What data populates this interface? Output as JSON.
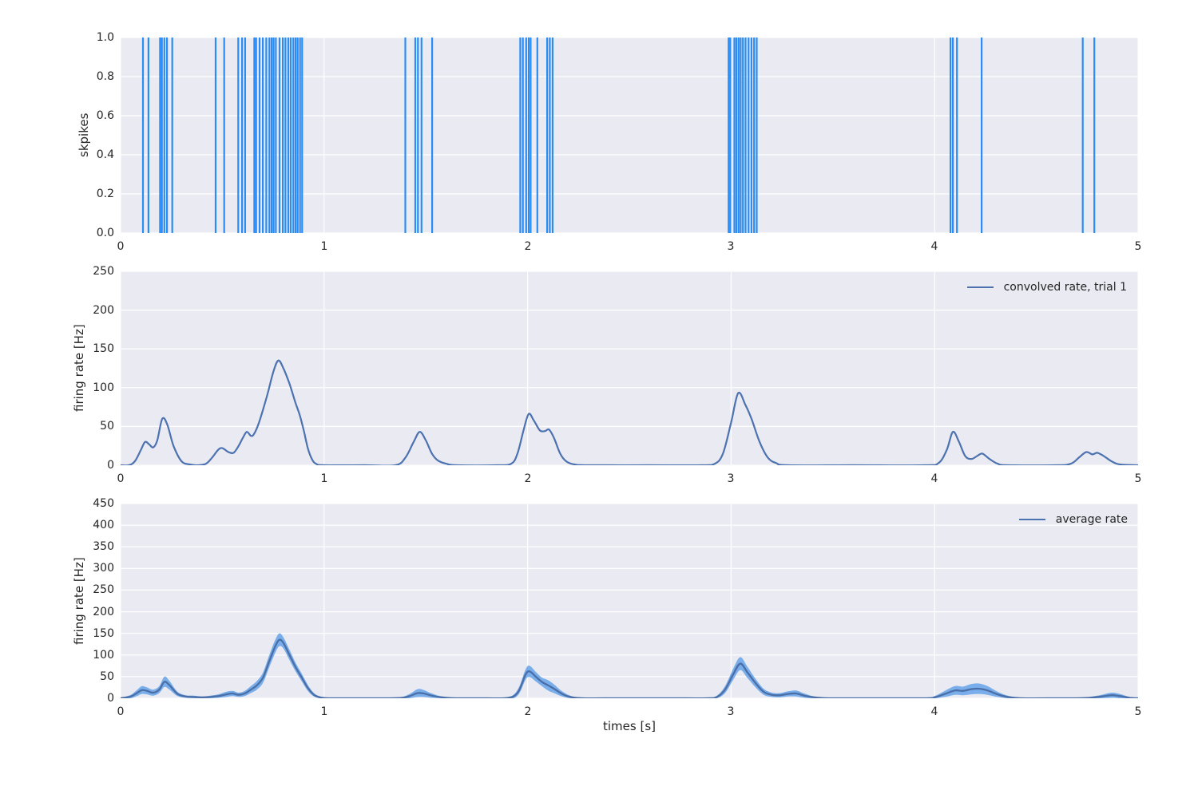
{
  "colors": {
    "figure_bg": "#ffffff",
    "axes_bg": "#eaeaf2",
    "grid": "#ffffff",
    "text": "#262626",
    "spike": "#2b8cf3",
    "line": "#4c72b0",
    "mean_line": "#4a6fa8",
    "band": "#79aeea"
  },
  "chart_data": [
    {
      "name": "spike-raster",
      "type": "event-raster",
      "ylabel": "skpikes",
      "xlim": [
        0,
        5
      ],
      "ylim": [
        0,
        1
      ],
      "xticks": [
        {
          "v": 0,
          "label": "0"
        },
        {
          "v": 1,
          "label": "1"
        },
        {
          "v": 2,
          "label": "2"
        },
        {
          "v": 3,
          "label": "3"
        },
        {
          "v": 4,
          "label": "4"
        },
        {
          "v": 5,
          "label": "5"
        }
      ],
      "yticks": [
        {
          "v": 0,
          "label": "0.0"
        },
        {
          "v": 0.2,
          "label": "0.2"
        },
        {
          "v": 0.4,
          "label": "0.4"
        },
        {
          "v": 0.6,
          "label": "0.6"
        },
        {
          "v": 0.8,
          "label": "0.8"
        },
        {
          "v": 1,
          "label": "1.0"
        }
      ],
      "spike_times": [
        0.11,
        0.137,
        0.194,
        0.203,
        0.215,
        0.228,
        0.254,
        0.467,
        0.509,
        0.578,
        0.597,
        0.612,
        0.657,
        0.666,
        0.683,
        0.699,
        0.716,
        0.731,
        0.742,
        0.752,
        0.763,
        0.781,
        0.797,
        0.81,
        0.824,
        0.836,
        0.849,
        0.86,
        0.87,
        0.882,
        0.892,
        1.399,
        1.448,
        1.461,
        1.479,
        1.531,
        1.964,
        1.977,
        1.993,
        2.005,
        2.015,
        2.048,
        2.096,
        2.109,
        2.123,
        2.988,
        2.996,
        3.016,
        3.026,
        3.037,
        3.047,
        3.058,
        3.071,
        3.086,
        3.1,
        3.113,
        3.126,
        4.078,
        4.09,
        4.11,
        4.231,
        4.728,
        4.785
      ]
    },
    {
      "name": "convolved-rate",
      "type": "line",
      "ylabel": "firing rate [Hz]",
      "legend": "convolved rate, trial 1",
      "legend_position": "upper right",
      "xlim": [
        0,
        5
      ],
      "ylim": [
        0,
        250
      ],
      "xticks": [
        {
          "v": 0,
          "label": "0"
        },
        {
          "v": 1,
          "label": "1"
        },
        {
          "v": 2,
          "label": "2"
        },
        {
          "v": 3,
          "label": "3"
        },
        {
          "v": 4,
          "label": "4"
        },
        {
          "v": 5,
          "label": "5"
        }
      ],
      "yticks": [
        {
          "v": 0,
          "label": "0"
        },
        {
          "v": 50,
          "label": "50"
        },
        {
          "v": 100,
          "label": "100"
        },
        {
          "v": 150,
          "label": "150"
        },
        {
          "v": 200,
          "label": "200"
        },
        {
          "v": 250,
          "label": "250"
        }
      ],
      "series": {
        "x": [
          0.0,
          0.04,
          0.07,
          0.1,
          0.12,
          0.14,
          0.16,
          0.18,
          0.205,
          0.23,
          0.26,
          0.3,
          0.34,
          0.38,
          0.42,
          0.45,
          0.48,
          0.5,
          0.53,
          0.555,
          0.58,
          0.6,
          0.62,
          0.64,
          0.655,
          0.68,
          0.72,
          0.75,
          0.775,
          0.8,
          0.83,
          0.86,
          0.88,
          0.9,
          0.92,
          0.94,
          0.96,
          1.0,
          1.2,
          1.35,
          1.4,
          1.44,
          1.47,
          1.5,
          1.53,
          1.56,
          1.6,
          1.65,
          1.85,
          1.92,
          1.95,
          1.98,
          2.005,
          2.03,
          2.06,
          2.085,
          2.105,
          2.13,
          2.16,
          2.19,
          2.23,
          2.3,
          2.6,
          2.85,
          2.92,
          2.96,
          3.0,
          3.035,
          3.07,
          3.1,
          3.14,
          3.18,
          3.22,
          3.28,
          3.6,
          3.95,
          4.02,
          4.06,
          4.09,
          4.12,
          4.15,
          4.18,
          4.21,
          4.235,
          4.27,
          4.31,
          4.36,
          4.6,
          4.67,
          4.71,
          4.745,
          4.775,
          4.8,
          4.83,
          4.87,
          4.91,
          5.0
        ],
        "y": [
          0,
          0,
          5,
          20,
          30,
          27,
          23,
          32,
          60,
          52,
          25,
          5,
          1,
          0,
          2,
          10,
          20,
          22,
          17,
          16,
          25,
          35,
          43,
          38,
          40,
          55,
          90,
          120,
          135,
          125,
          105,
          80,
          65,
          45,
          22,
          8,
          2,
          0,
          0,
          0,
          10,
          30,
          43,
          32,
          15,
          6,
          2,
          0,
          0,
          2,
          15,
          45,
          66,
          58,
          45,
          44,
          46,
          35,
          15,
          5,
          1,
          0,
          0,
          0,
          2,
          15,
          55,
          93,
          78,
          60,
          30,
          10,
          3,
          0,
          0,
          0,
          3,
          20,
          43,
          30,
          12,
          8,
          12,
          15,
          8,
          2,
          0,
          0,
          2,
          10,
          17,
          14,
          16,
          12,
          5,
          1,
          0
        ]
      }
    },
    {
      "name": "average-rate",
      "type": "line-band",
      "ylabel": "firing rate [Hz]",
      "xlabel": "times [s]",
      "legend": "average rate",
      "legend_position": "upper right",
      "xlim": [
        0,
        5
      ],
      "ylim": [
        0,
        450
      ],
      "xticks": [
        {
          "v": 0,
          "label": "0"
        },
        {
          "v": 1,
          "label": "1"
        },
        {
          "v": 2,
          "label": "2"
        },
        {
          "v": 3,
          "label": "3"
        },
        {
          "v": 4,
          "label": "4"
        },
        {
          "v": 5,
          "label": "5"
        }
      ],
      "yticks": [
        {
          "v": 0,
          "label": "0"
        },
        {
          "v": 50,
          "label": "50"
        },
        {
          "v": 100,
          "label": "100"
        },
        {
          "v": 150,
          "label": "150"
        },
        {
          "v": 200,
          "label": "200"
        },
        {
          "v": 250,
          "label": "250"
        },
        {
          "v": 300,
          "label": "300"
        },
        {
          "v": 350,
          "label": "350"
        },
        {
          "v": 400,
          "label": "400"
        },
        {
          "v": 450,
          "label": "450"
        }
      ],
      "series": {
        "x": [
          0.0,
          0.05,
          0.08,
          0.105,
          0.13,
          0.16,
          0.19,
          0.215,
          0.24,
          0.28,
          0.32,
          0.36,
          0.4,
          0.44,
          0.48,
          0.52,
          0.55,
          0.58,
          0.61,
          0.64,
          0.67,
          0.7,
          0.73,
          0.76,
          0.78,
          0.8,
          0.83,
          0.86,
          0.89,
          0.92,
          0.95,
          0.98,
          1.02,
          1.15,
          1.3,
          1.38,
          1.42,
          1.46,
          1.49,
          1.53,
          1.58,
          1.65,
          1.8,
          1.88,
          1.93,
          1.96,
          1.99,
          2.01,
          2.04,
          2.07,
          2.1,
          2.13,
          2.17,
          2.21,
          2.27,
          2.45,
          2.7,
          2.88,
          2.93,
          2.97,
          3.01,
          3.045,
          3.08,
          3.12,
          3.16,
          3.2,
          3.24,
          3.28,
          3.32,
          3.36,
          3.41,
          3.48,
          3.7,
          3.95,
          4.0,
          4.05,
          4.1,
          4.14,
          4.18,
          4.22,
          4.26,
          4.31,
          4.36,
          4.43,
          4.6,
          4.7,
          4.76,
          4.82,
          4.87,
          4.91,
          4.96,
          5.0
        ],
        "mean": [
          0,
          4,
          12,
          19,
          17,
          13,
          20,
          38,
          30,
          10,
          4,
          3,
          2,
          3,
          5,
          9,
          11,
          8,
          11,
          20,
          30,
          48,
          85,
          120,
          135,
          128,
          100,
          72,
          48,
          24,
          8,
          2,
          0,
          0,
          0,
          1,
          5,
          12,
          11,
          6,
          2,
          0,
          0,
          0,
          4,
          20,
          55,
          62,
          50,
          38,
          30,
          22,
          10,
          3,
          0,
          0,
          0,
          0,
          3,
          20,
          55,
          80,
          60,
          35,
          15,
          8,
          7,
          10,
          11,
          6,
          2,
          0,
          0,
          0,
          2,
          10,
          18,
          17,
          21,
          22,
          18,
          9,
          3,
          0,
          0,
          0,
          1,
          4,
          7,
          5,
          1,
          0
        ],
        "hw": [
          1,
          4,
          7,
          9,
          8,
          7,
          8,
          12,
          10,
          5,
          3,
          3,
          2,
          3,
          4,
          6,
          6,
          5,
          6,
          8,
          10,
          12,
          14,
          15,
          15,
          13,
          12,
          10,
          9,
          7,
          4,
          2,
          1,
          1,
          1,
          2,
          5,
          9,
          8,
          5,
          2,
          1,
          1,
          1,
          4,
          8,
          12,
          13,
          11,
          10,
          12,
          10,
          6,
          3,
          1,
          1,
          1,
          1,
          3,
          8,
          13,
          15,
          13,
          10,
          7,
          5,
          5,
          6,
          7,
          5,
          2,
          1,
          1,
          1,
          3,
          7,
          10,
          10,
          12,
          12,
          10,
          6,
          3,
          1,
          1,
          1,
          2,
          4,
          6,
          5,
          2,
          1
        ]
      }
    }
  ]
}
